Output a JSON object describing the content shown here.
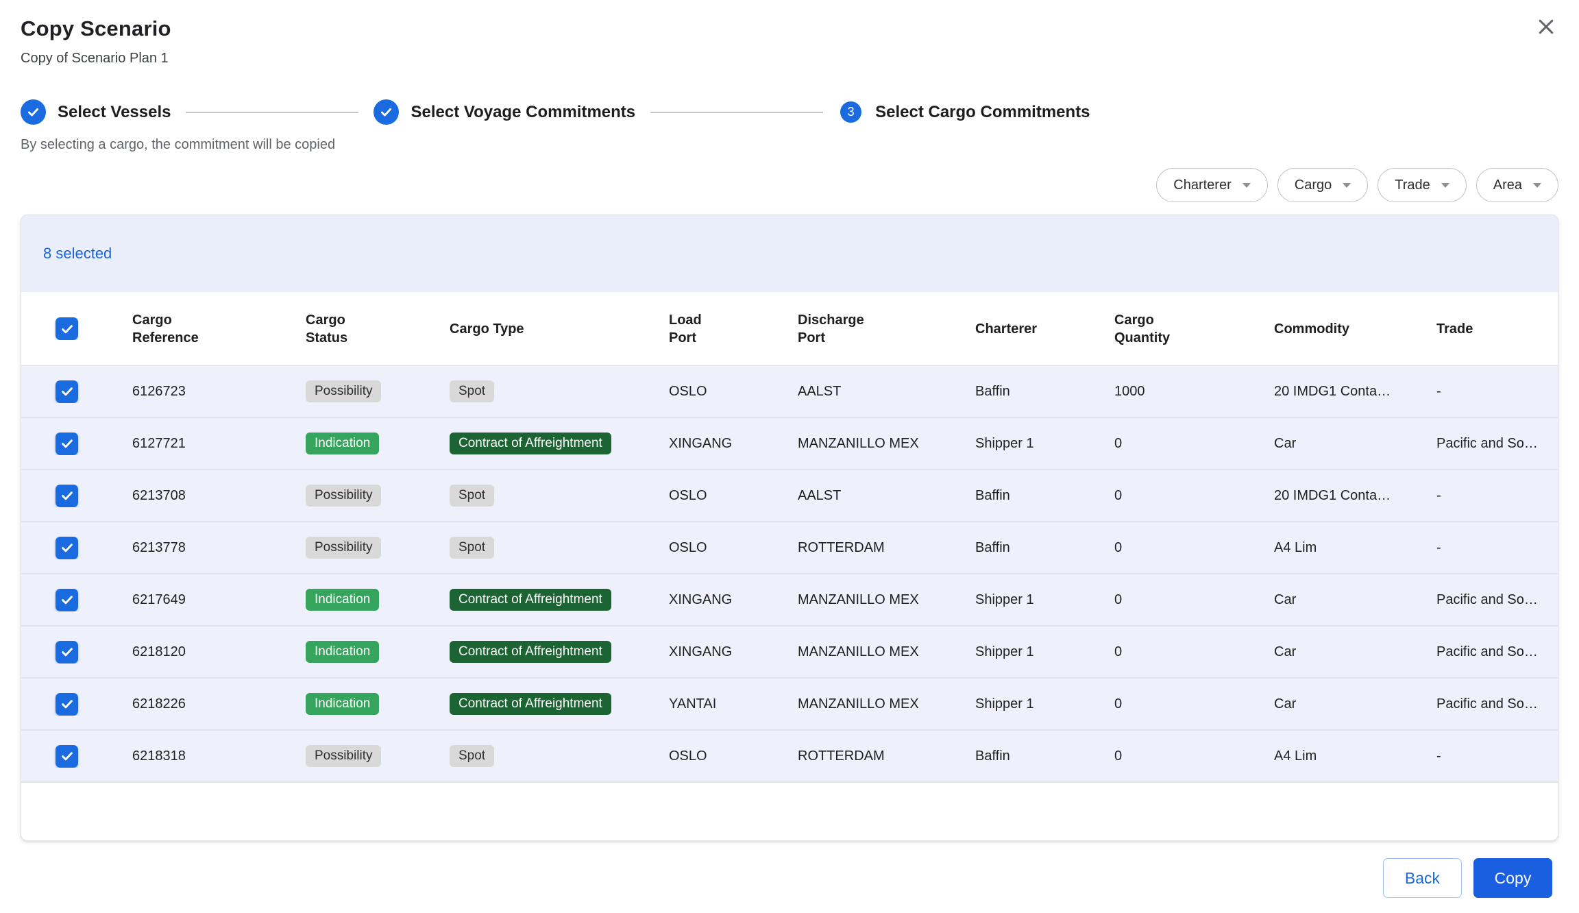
{
  "dialog": {
    "title": "Copy Scenario",
    "subtitle": "Copy of Scenario Plan 1",
    "helper_text": "By selecting a cargo, the commitment will be copied",
    "selected_count": "8 selected",
    "footer": {
      "back": "Back",
      "copy": "Copy"
    }
  },
  "stepper": [
    {
      "label": "Select Vessels",
      "state": "complete"
    },
    {
      "label": "Select Voyage Commitments",
      "state": "complete"
    },
    {
      "label": "Select Cargo Commitments",
      "state": "active",
      "number": "3"
    }
  ],
  "filters": [
    {
      "label": "Charterer"
    },
    {
      "label": "Cargo"
    },
    {
      "label": "Trade"
    },
    {
      "label": "Area"
    }
  ],
  "table": {
    "header_checkbox_checked": true,
    "headers": [
      {
        "lines": [
          "Cargo",
          "Reference"
        ]
      },
      {
        "lines": [
          "Cargo",
          "Status"
        ]
      },
      {
        "lines": [
          "Cargo Type"
        ]
      },
      {
        "lines": [
          "Load",
          "Port"
        ]
      },
      {
        "lines": [
          "Discharge",
          "Port"
        ]
      },
      {
        "lines": [
          "Charterer"
        ]
      },
      {
        "lines": [
          "Cargo",
          "Quantity"
        ]
      },
      {
        "lines": [
          "Commodity"
        ]
      },
      {
        "lines": [
          "Trade"
        ]
      }
    ],
    "rows": [
      {
        "checked": true,
        "reference": "6126723",
        "status": "Possibility",
        "status_variant": "gray",
        "cargo_type": "Spot",
        "type_variant": "gray",
        "load_port": "OSLO",
        "discharge_port": "AALST",
        "charterer": "Baffin",
        "quantity": "1000",
        "commodity": "20 IMDG1 Conta…",
        "trade": "-"
      },
      {
        "checked": true,
        "reference": "6127721",
        "status": "Indication",
        "status_variant": "green",
        "cargo_type": "Contract of Affreightment",
        "type_variant": "dark-green",
        "load_port": "XINGANG",
        "discharge_port": "MANZANILLO MEX",
        "charterer": "Shipper 1",
        "quantity": "0",
        "commodity": "Car",
        "trade": "Pacific and So…"
      },
      {
        "checked": true,
        "reference": "6213708",
        "status": "Possibility",
        "status_variant": "gray",
        "cargo_type": "Spot",
        "type_variant": "gray",
        "load_port": "OSLO",
        "discharge_port": "AALST",
        "charterer": "Baffin",
        "quantity": "0",
        "commodity": "20 IMDG1 Conta…",
        "trade": "-"
      },
      {
        "checked": true,
        "reference": "6213778",
        "status": "Possibility",
        "status_variant": "gray",
        "cargo_type": "Spot",
        "type_variant": "gray",
        "load_port": "OSLO",
        "discharge_port": "ROTTERDAM",
        "charterer": "Baffin",
        "quantity": "0",
        "commodity": "A4 Lim",
        "trade": "-"
      },
      {
        "checked": true,
        "reference": "6217649",
        "status": "Indication",
        "status_variant": "green",
        "cargo_type": "Contract of Affreightment",
        "type_variant": "dark-green",
        "load_port": "XINGANG",
        "discharge_port": "MANZANILLO MEX",
        "charterer": "Shipper 1",
        "quantity": "0",
        "commodity": "Car",
        "trade": "Pacific and So…"
      },
      {
        "checked": true,
        "reference": "6218120",
        "status": "Indication",
        "status_variant": "green",
        "cargo_type": "Contract of Affreightment",
        "type_variant": "dark-green",
        "load_port": "XINGANG",
        "discharge_port": "MANZANILLO MEX",
        "charterer": "Shipper 1",
        "quantity": "0",
        "commodity": "Car",
        "trade": "Pacific and So…"
      },
      {
        "checked": true,
        "reference": "6218226",
        "status": "Indication",
        "status_variant": "green",
        "cargo_type": "Contract of Affreightment",
        "type_variant": "dark-green",
        "load_port": "YANTAI",
        "discharge_port": "MANZANILLO MEX",
        "charterer": "Shipper 1",
        "quantity": "0",
        "commodity": "Car",
        "trade": "Pacific and So…"
      },
      {
        "checked": true,
        "reference": "6218318",
        "status": "Possibility",
        "status_variant": "gray",
        "cargo_type": "Spot",
        "type_variant": "gray",
        "load_port": "OSLO",
        "discharge_port": "ROTTERDAM",
        "charterer": "Baffin",
        "quantity": "0",
        "commodity": "A4 Lim",
        "trade": "-"
      }
    ]
  },
  "icons": {
    "close": "close-icon",
    "check": "check-icon",
    "caret": "chevron-down-icon"
  },
  "colors": {
    "accent_blue": "#1a6be0",
    "copy_button_bg": "#1a5fe0",
    "selected_text_blue": "#1a62d8",
    "selection_bar_bg": "#e9eefa",
    "row_selected_bg": "#eef1fb",
    "badge_gray_bg": "#d9d9d9",
    "badge_green_bg": "#35a45c",
    "badge_dark_green_bg": "#1c6433"
  }
}
